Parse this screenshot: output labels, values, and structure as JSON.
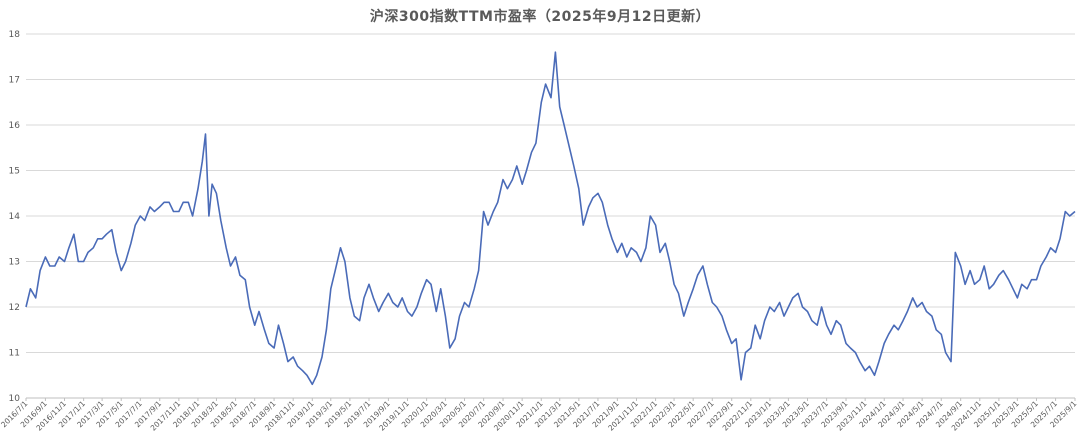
{
  "chart_data": {
    "type": "line",
    "title": "沪深300指数TTM市盈率（2025年9月12日更新）",
    "xlabel": "",
    "ylabel": "",
    "ylim": [
      10,
      18
    ],
    "yticks": [
      10,
      11,
      12,
      13,
      14,
      15,
      16,
      17,
      18
    ],
    "grid": true,
    "legend": "none",
    "line_color": "#4a6bb8",
    "xticks": [
      "2016/7/1",
      "2016/9/1",
      "2016/11/1",
      "2017/1/1",
      "2017/3/1",
      "2017/5/1",
      "2017/7/1",
      "2017/9/1",
      "2017/11/1",
      "2018/1/1",
      "2018/3/1",
      "2018/5/1",
      "2018/7/1",
      "2018/9/1",
      "2018/11/1",
      "2019/1/1",
      "2019/3/1",
      "2019/5/1",
      "2019/7/1",
      "2019/9/1",
      "2019/11/1",
      "2020/1/1",
      "2020/3/1",
      "2020/5/1",
      "2020/7/1",
      "2020/9/1",
      "2020/11/1",
      "2021/1/1",
      "2021/3/1",
      "2021/5/1",
      "2021/7/1",
      "2021/9/1",
      "2021/11/1",
      "2022/1/1",
      "2022/3/1",
      "2022/5/1",
      "2022/7/1",
      "2022/9/1",
      "2022/11/1",
      "2023/1/1",
      "2023/3/1",
      "2023/5/1",
      "2023/7/1",
      "2023/9/1",
      "2023/11/1",
      "2024/1/1",
      "2024/3/1",
      "2024/5/1",
      "2024/7/1",
      "2024/9/1",
      "2024/11/1",
      "2025/1/1",
      "2025/3/1",
      "2025/5/1",
      "2025/7/1",
      "2025/9/1"
    ],
    "series": [
      {
        "values": [
          [
            "2016/7/1",
            12.0
          ],
          [
            "2016/7/15",
            12.4
          ],
          [
            "2016/8/1",
            12.2
          ],
          [
            "2016/8/15",
            12.8
          ],
          [
            "2016/9/1",
            13.1
          ],
          [
            "2016/9/15",
            12.9
          ],
          [
            "2016/10/1",
            12.9
          ],
          [
            "2016/10/15",
            13.1
          ],
          [
            "2016/11/1",
            13.0
          ],
          [
            "2016/11/15",
            13.3
          ],
          [
            "2016/12/1",
            13.6
          ],
          [
            "2016/12/15",
            13.0
          ],
          [
            "2017/1/1",
            13.0
          ],
          [
            "2017/1/15",
            13.2
          ],
          [
            "2017/2/1",
            13.3
          ],
          [
            "2017/2/15",
            13.5
          ],
          [
            "2017/3/1",
            13.5
          ],
          [
            "2017/3/15",
            13.6
          ],
          [
            "2017/4/1",
            13.7
          ],
          [
            "2017/4/15",
            13.2
          ],
          [
            "2017/5/1",
            12.8
          ],
          [
            "2017/5/15",
            13.0
          ],
          [
            "2017/6/1",
            13.4
          ],
          [
            "2017/6/15",
            13.8
          ],
          [
            "2017/7/1",
            14.0
          ],
          [
            "2017/7/15",
            13.9
          ],
          [
            "2017/8/1",
            14.2
          ],
          [
            "2017/8/15",
            14.1
          ],
          [
            "2017/9/1",
            14.2
          ],
          [
            "2017/9/15",
            14.3
          ],
          [
            "2017/10/1",
            14.3
          ],
          [
            "2017/10/15",
            14.1
          ],
          [
            "2017/11/1",
            14.1
          ],
          [
            "2017/11/15",
            14.3
          ],
          [
            "2017/12/1",
            14.3
          ],
          [
            "2017/12/15",
            14.0
          ],
          [
            "2018/1/1",
            14.6
          ],
          [
            "2018/1/15",
            15.2
          ],
          [
            "2018/1/25",
            15.8
          ],
          [
            "2018/2/5",
            14.0
          ],
          [
            "2018/2/15",
            14.7
          ],
          [
            "2018/3/1",
            14.5
          ],
          [
            "2018/3/15",
            13.9
          ],
          [
            "2018/4/1",
            13.3
          ],
          [
            "2018/4/15",
            12.9
          ],
          [
            "2018/5/1",
            13.1
          ],
          [
            "2018/5/15",
            12.7
          ],
          [
            "2018/6/1",
            12.6
          ],
          [
            "2018/6/15",
            12.0
          ],
          [
            "2018/7/1",
            11.6
          ],
          [
            "2018/7/15",
            11.9
          ],
          [
            "2018/8/1",
            11.5
          ],
          [
            "2018/8/15",
            11.2
          ],
          [
            "2018/9/1",
            11.1
          ],
          [
            "2018/9/15",
            11.6
          ],
          [
            "2018/10/1",
            11.2
          ],
          [
            "2018/10/15",
            10.8
          ],
          [
            "2018/11/1",
            10.9
          ],
          [
            "2018/11/15",
            10.7
          ],
          [
            "2018/12/1",
            10.6
          ],
          [
            "2018/12/15",
            10.5
          ],
          [
            "2019/1/1",
            10.3
          ],
          [
            "2019/1/15",
            10.5
          ],
          [
            "2019/2/1",
            10.9
          ],
          [
            "2019/2/15",
            11.5
          ],
          [
            "2019/3/1",
            12.4
          ],
          [
            "2019/3/15",
            12.8
          ],
          [
            "2019/4/1",
            13.3
          ],
          [
            "2019/4/15",
            13.0
          ],
          [
            "2019/5/1",
            12.2
          ],
          [
            "2019/5/15",
            11.8
          ],
          [
            "2019/6/1",
            11.7
          ],
          [
            "2019/6/15",
            12.2
          ],
          [
            "2019/7/1",
            12.5
          ],
          [
            "2019/7/15",
            12.2
          ],
          [
            "2019/8/1",
            11.9
          ],
          [
            "2019/8/15",
            12.1
          ],
          [
            "2019/9/1",
            12.3
          ],
          [
            "2019/9/15",
            12.1
          ],
          [
            "2019/10/1",
            12.0
          ],
          [
            "2019/10/15",
            12.2
          ],
          [
            "2019/11/1",
            11.9
          ],
          [
            "2019/11/15",
            11.8
          ],
          [
            "2019/12/1",
            12.0
          ],
          [
            "2019/12/15",
            12.3
          ],
          [
            "2020/1/1",
            12.6
          ],
          [
            "2020/1/15",
            12.5
          ],
          [
            "2020/2/1",
            11.9
          ],
          [
            "2020/2/15",
            12.4
          ],
          [
            "2020/3/1",
            11.8
          ],
          [
            "2020/3/15",
            11.1
          ],
          [
            "2020/4/1",
            11.3
          ],
          [
            "2020/4/15",
            11.8
          ],
          [
            "2020/5/1",
            12.1
          ],
          [
            "2020/5/15",
            12.0
          ],
          [
            "2020/6/1",
            12.4
          ],
          [
            "2020/6/15",
            12.8
          ],
          [
            "2020/7/1",
            14.1
          ],
          [
            "2020/7/15",
            13.8
          ],
          [
            "2020/8/1",
            14.1
          ],
          [
            "2020/8/15",
            14.3
          ],
          [
            "2020/9/1",
            14.8
          ],
          [
            "2020/9/15",
            14.6
          ],
          [
            "2020/10/1",
            14.8
          ],
          [
            "2020/10/15",
            15.1
          ],
          [
            "2020/11/1",
            14.7
          ],
          [
            "2020/11/15",
            15.0
          ],
          [
            "2020/12/1",
            15.4
          ],
          [
            "2020/12/15",
            15.6
          ],
          [
            "2021/1/1",
            16.5
          ],
          [
            "2021/1/15",
            16.9
          ],
          [
            "2021/2/1",
            16.6
          ],
          [
            "2021/2/15",
            17.6
          ],
          [
            "2021/3/1",
            16.4
          ],
          [
            "2021/3/15",
            16.0
          ],
          [
            "2021/4/1",
            15.5
          ],
          [
            "2021/4/15",
            15.1
          ],
          [
            "2021/5/1",
            14.6
          ],
          [
            "2021/5/15",
            13.8
          ],
          [
            "2021/6/1",
            14.2
          ],
          [
            "2021/6/15",
            14.4
          ],
          [
            "2021/7/1",
            14.5
          ],
          [
            "2021/7/15",
            14.3
          ],
          [
            "2021/8/1",
            13.8
          ],
          [
            "2021/8/15",
            13.5
          ],
          [
            "2021/9/1",
            13.2
          ],
          [
            "2021/9/15",
            13.4
          ],
          [
            "2021/10/1",
            13.1
          ],
          [
            "2021/10/15",
            13.3
          ],
          [
            "2021/11/1",
            13.2
          ],
          [
            "2021/11/15",
            13.0
          ],
          [
            "2021/12/1",
            13.3
          ],
          [
            "2021/12/15",
            14.0
          ],
          [
            "2022/1/1",
            13.8
          ],
          [
            "2022/1/15",
            13.2
          ],
          [
            "2022/2/1",
            13.4
          ],
          [
            "2022/2/15",
            13.0
          ],
          [
            "2022/3/1",
            12.5
          ],
          [
            "2022/3/15",
            12.3
          ],
          [
            "2022/4/1",
            11.8
          ],
          [
            "2022/4/15",
            12.1
          ],
          [
            "2022/5/1",
            12.4
          ],
          [
            "2022/5/15",
            12.7
          ],
          [
            "2022/6/1",
            12.9
          ],
          [
            "2022/6/15",
            12.5
          ],
          [
            "2022/7/1",
            12.1
          ],
          [
            "2022/7/15",
            12.0
          ],
          [
            "2022/8/1",
            11.8
          ],
          [
            "2022/8/15",
            11.5
          ],
          [
            "2022/9/1",
            11.2
          ],
          [
            "2022/9/15",
            11.3
          ],
          [
            "2022/10/1",
            10.4
          ],
          [
            "2022/10/15",
            11.0
          ],
          [
            "2022/11/1",
            11.1
          ],
          [
            "2022/11/15",
            11.6
          ],
          [
            "2022/12/1",
            11.3
          ],
          [
            "2022/12/15",
            11.7
          ],
          [
            "2023/1/1",
            12.0
          ],
          [
            "2023/1/15",
            11.9
          ],
          [
            "2023/2/1",
            12.1
          ],
          [
            "2023/2/15",
            11.8
          ],
          [
            "2023/3/1",
            12.0
          ],
          [
            "2023/3/15",
            12.2
          ],
          [
            "2023/4/1",
            12.3
          ],
          [
            "2023/4/15",
            12.0
          ],
          [
            "2023/5/1",
            11.9
          ],
          [
            "2023/5/15",
            11.7
          ],
          [
            "2023/6/1",
            11.6
          ],
          [
            "2023/6/15",
            12.0
          ],
          [
            "2023/7/1",
            11.6
          ],
          [
            "2023/7/15",
            11.4
          ],
          [
            "2023/8/1",
            11.7
          ],
          [
            "2023/8/15",
            11.6
          ],
          [
            "2023/9/1",
            11.2
          ],
          [
            "2023/9/15",
            11.1
          ],
          [
            "2023/10/1",
            11.0
          ],
          [
            "2023/10/15",
            10.8
          ],
          [
            "2023/11/1",
            10.6
          ],
          [
            "2023/11/15",
            10.7
          ],
          [
            "2023/12/1",
            10.5
          ],
          [
            "2023/12/15",
            10.8
          ],
          [
            "2024/1/1",
            11.2
          ],
          [
            "2024/1/15",
            11.4
          ],
          [
            "2024/2/1",
            11.6
          ],
          [
            "2024/2/15",
            11.5
          ],
          [
            "2024/3/1",
            11.7
          ],
          [
            "2024/3/15",
            11.9
          ],
          [
            "2024/4/1",
            12.2
          ],
          [
            "2024/4/15",
            12.0
          ],
          [
            "2024/5/1",
            12.1
          ],
          [
            "2024/5/15",
            11.9
          ],
          [
            "2024/6/1",
            11.8
          ],
          [
            "2024/6/15",
            11.5
          ],
          [
            "2024/7/1",
            11.4
          ],
          [
            "2024/7/15",
            11.0
          ],
          [
            "2024/8/1",
            10.8
          ],
          [
            "2024/8/15",
            13.2
          ],
          [
            "2024/9/1",
            12.9
          ],
          [
            "2024/9/15",
            12.5
          ],
          [
            "2024/10/1",
            12.8
          ],
          [
            "2024/10/15",
            12.5
          ],
          [
            "2024/11/1",
            12.6
          ],
          [
            "2024/11/15",
            12.9
          ],
          [
            "2024/12/1",
            12.4
          ],
          [
            "2024/12/15",
            12.5
          ],
          [
            "2025/1/1",
            12.7
          ],
          [
            "2025/1/15",
            12.8
          ],
          [
            "2025/2/1",
            12.6
          ],
          [
            "2025/2/15",
            12.4
          ],
          [
            "2025/3/1",
            12.2
          ],
          [
            "2025/3/15",
            12.5
          ],
          [
            "2025/4/1",
            12.4
          ],
          [
            "2025/4/15",
            12.6
          ],
          [
            "2025/5/1",
            12.6
          ],
          [
            "2025/5/15",
            12.9
          ],
          [
            "2025/6/1",
            13.1
          ],
          [
            "2025/6/15",
            13.3
          ],
          [
            "2025/7/1",
            13.2
          ],
          [
            "2025/7/15",
            13.5
          ],
          [
            "2025/8/1",
            14.1
          ],
          [
            "2025/8/15",
            14.0
          ],
          [
            "2025/9/1",
            14.1
          ]
        ]
      }
    ]
  }
}
